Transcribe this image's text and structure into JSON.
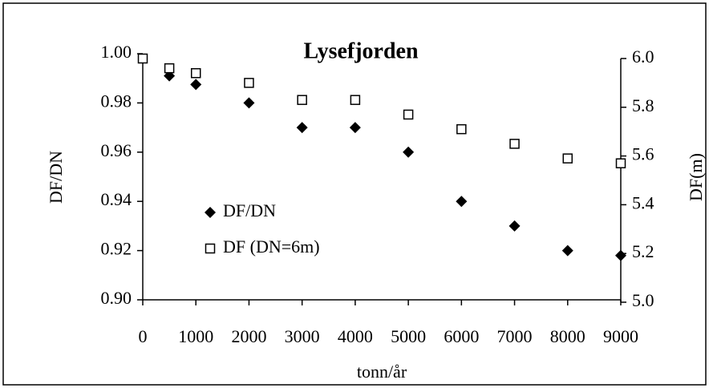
{
  "chart_data": {
    "type": "scatter",
    "title": "Lysefjorden",
    "xlabel": "tonn/år",
    "ylabel": "DF/DN",
    "y2label": "DF(m)",
    "xlim": [
      0,
      9000
    ],
    "xticks": [
      0,
      1000,
      2000,
      3000,
      4000,
      5000,
      6000,
      7000,
      8000,
      9000
    ],
    "ylim": [
      0.9,
      1.0
    ],
    "yticks": [
      {
        "value": 0.9,
        "label": "0.90"
      },
      {
        "value": 0.92,
        "label": "0.92"
      },
      {
        "value": 0.94,
        "label": "0.94"
      },
      {
        "value": 0.96,
        "label": "0.96"
      },
      {
        "value": 0.98,
        "label": "0.98"
      },
      {
        "value": 1.0,
        "label": "1.00"
      }
    ],
    "y2lim": [
      5.0,
      6.0
    ],
    "y2ticks": [
      {
        "value": 5.0,
        "label": "5.0"
      },
      {
        "value": 5.2,
        "label": "5.2"
      },
      {
        "value": 5.4,
        "label": "5.4"
      },
      {
        "value": 5.6,
        "label": "5.6"
      },
      {
        "value": 5.8,
        "label": "5.8"
      },
      {
        "value": 6.0,
        "label": "6.0"
      }
    ],
    "series": [
      {
        "name": "DF/DN",
        "color": "#000000",
        "marker": "diamond",
        "x": [
          500,
          1000,
          2000,
          3000,
          4000,
          5000,
          6000,
          7000,
          8000,
          9000
        ],
        "values": [
          0.991,
          0.9875,
          0.98,
          0.97,
          0.97,
          0.96,
          0.94,
          0.93,
          0.92,
          0.918
        ]
      },
      {
        "name": "DF (DN=6m)",
        "color": "#000000",
        "marker": "square",
        "axis": "y2",
        "x": [
          0,
          500,
          1000,
          2000,
          3000,
          4000,
          5000,
          6000,
          7000,
          8000,
          9000
        ],
        "values": [
          6.0,
          5.96,
          5.94,
          5.9,
          5.83,
          5.83,
          5.77,
          5.71,
          5.65,
          5.59,
          5.57
        ]
      }
    ]
  }
}
